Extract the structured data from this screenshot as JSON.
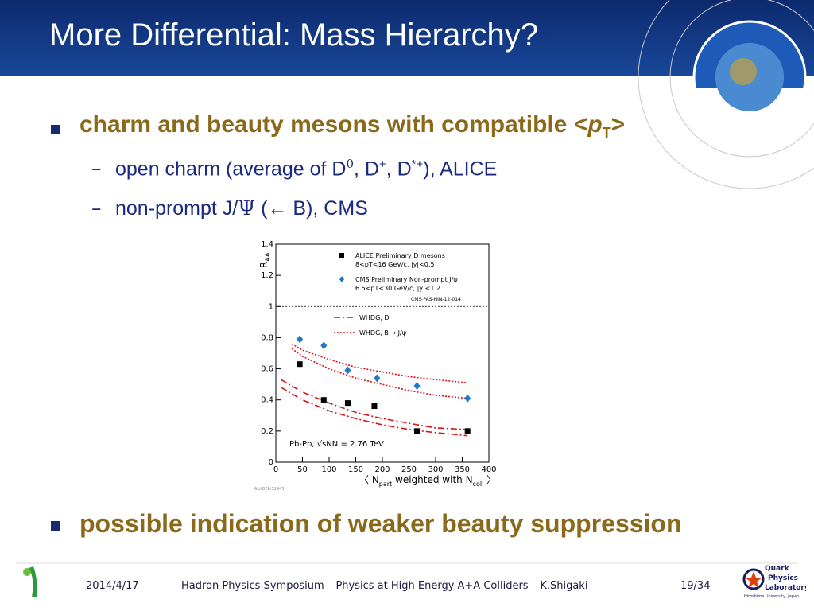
{
  "header": {
    "title": "More Differential: Mass Hierarchy?"
  },
  "bullets": [
    {
      "parts": [
        "charm and beauty mesons with compatible <",
        "p",
        "T",
        ">"
      ],
      "sub": [
        {
          "parts": [
            "open charm (average of D",
            "0",
            ", D",
            "+",
            ", D",
            "*+",
            "), ALICE"
          ]
        },
        {
          "parts": [
            "non-prompt J/",
            "Ψ",
            " (",
            "←",
            " B), CMS"
          ]
        }
      ]
    },
    {
      "parts": [
        "possible indication of weaker beauty suppression"
      ]
    }
  ],
  "chart_data": {
    "type": "scatter",
    "ylabel": {
      "main": "R",
      "sub": "AA"
    },
    "xlabel": {
      "open": "〈 N",
      "sub1": "part",
      "mid": " weighted with N",
      "sub2": "coll",
      "close": " 〉"
    },
    "xlim": [
      0,
      400
    ],
    "xticks": [
      0,
      50,
      100,
      150,
      200,
      250,
      300,
      350,
      400
    ],
    "ylim": [
      0,
      1.4
    ],
    "yticks": [
      0,
      0.2,
      0.4,
      0.6,
      0.8,
      1,
      1.2,
      1.4
    ],
    "reference_line": 1,
    "series": [
      {
        "name": "ALICE Preliminary D mesons",
        "detail": "8<pT<16 GeV/c, |y|<0.5",
        "color": "#000000",
        "marker": "square",
        "x": [
          45,
          90,
          135,
          185,
          265,
          360
        ],
        "values": [
          0.63,
          0.4,
          0.38,
          0.36,
          0.2,
          0.2
        ]
      },
      {
        "name": "CMS Preliminary Non-prompt J/ψ",
        "detail": "6.5<pT<30 GeV/c, |y|<1.2",
        "color": "#1f78c8",
        "marker": "diamond",
        "x": [
          45,
          90,
          135,
          190,
          265,
          360
        ],
        "values": [
          0.79,
          0.75,
          0.59,
          0.54,
          0.49,
          0.41
        ]
      }
    ],
    "curves": [
      {
        "name": "WHDG, D",
        "color": "#dd1111",
        "dash": "8 3 2 3",
        "bands": [
          {
            "x": [
              10,
              50,
              100,
              150,
              200,
              250,
              300,
              360
            ],
            "values": [
              0.48,
              0.4,
              0.33,
              0.28,
              0.24,
              0.21,
              0.19,
              0.17
            ]
          },
          {
            "x": [
              10,
              50,
              100,
              150,
              200,
              250,
              300,
              360
            ],
            "values": [
              0.53,
              0.45,
              0.38,
              0.32,
              0.28,
              0.25,
              0.22,
              0.21
            ]
          }
        ]
      },
      {
        "name": "WHDG, B → J/ψ",
        "color": "#dd1111",
        "dash": "2 2",
        "bands": [
          {
            "x": [
              30,
              50,
              100,
              150,
              200,
              250,
              300,
              360
            ],
            "values": [
              0.76,
              0.72,
              0.66,
              0.61,
              0.58,
              0.55,
              0.53,
              0.51
            ]
          },
          {
            "x": [
              30,
              50,
              100,
              150,
              200,
              250,
              300,
              360
            ],
            "values": [
              0.73,
              0.68,
              0.6,
              0.54,
              0.5,
              0.46,
              0.43,
              0.41
            ]
          }
        ]
      }
    ],
    "source": "CMS-PAS-HIN-12-014",
    "annotation": "Pb-Pb, √sNN = 2.76 TeV",
    "figure_id": "ALI-DER-52943"
  },
  "footer": {
    "date": "2014/4/17",
    "event": "Hadron Physics Symposium – Physics at High Energy A+A Colliders – K.Shigaki",
    "page": "19/34",
    "lab": [
      "Quark",
      "Physics",
      "Laboratory"
    ],
    "university": "Hiroshima University, Japan"
  }
}
